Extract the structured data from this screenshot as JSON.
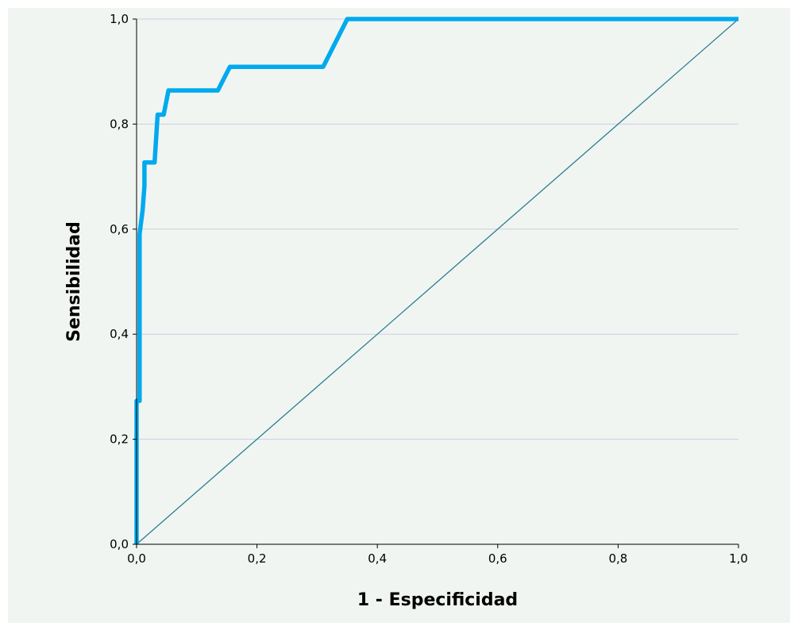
{
  "chart_data": {
    "type": "line",
    "title": "",
    "xlabel": "1 - Especificidad",
    "ylabel": "Sensibilidad",
    "xlim": [
      0,
      1
    ],
    "ylim": [
      0,
      1
    ],
    "x_ticks": [
      "0,0",
      "0,2",
      "0,4",
      "0,6",
      "0,8",
      "1,0"
    ],
    "y_ticks": [
      "0,0",
      "0,2",
      "0,4",
      "0,6",
      "0,8",
      "1,0"
    ],
    "grid": "horizontal",
    "legend": "none",
    "series": [
      {
        "color": "#00aaee",
        "points": [
          [
            0.0,
            0.0
          ],
          [
            0.0,
            0.273
          ],
          [
            0.005,
            0.273
          ],
          [
            0.005,
            0.591
          ],
          [
            0.01,
            0.636
          ],
          [
            0.013,
            0.682
          ],
          [
            0.013,
            0.727
          ],
          [
            0.03,
            0.727
          ],
          [
            0.035,
            0.818
          ],
          [
            0.045,
            0.818
          ],
          [
            0.053,
            0.864
          ],
          [
            0.135,
            0.864
          ],
          [
            0.155,
            0.909
          ],
          [
            0.31,
            0.909
          ],
          [
            0.35,
            1.0
          ],
          [
            1.0,
            1.0
          ]
        ]
      },
      {
        "color": "#2a7f8f",
        "points": [
          [
            0,
            0
          ],
          [
            1,
            1
          ]
        ]
      }
    ],
    "colors": {
      "plot_background": "#f1f5f2",
      "gridline": "#c8cfe0",
      "axis": "#000000"
    }
  }
}
